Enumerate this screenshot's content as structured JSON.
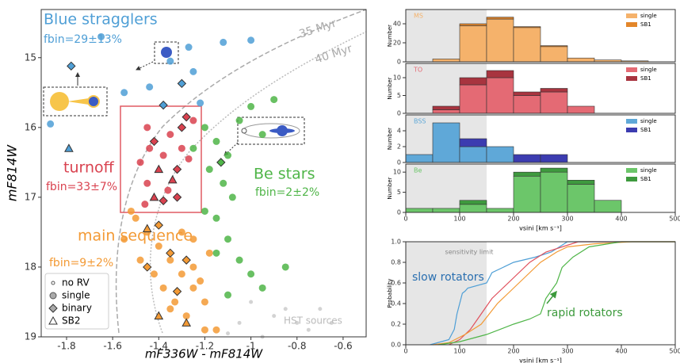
{
  "chart_data": [
    {
      "type": "scatter",
      "xlabel": "mF336W - mF814W",
      "ylabel": "mF814W",
      "xlim": [
        -1.91,
        -0.5
      ],
      "ylim": [
        19,
        14.31
      ],
      "xticks": [
        -1.8,
        -1.6,
        -1.4,
        -1.2,
        -1.0,
        -0.8,
        -0.6
      ],
      "yticks": [
        15,
        16,
        17,
        18,
        19
      ],
      "legend": [
        "no RV",
        "single",
        "binary",
        "SB2"
      ],
      "legend_loc": "lower left",
      "annotations": [
        "35 Myr",
        "40 Myr"
      ],
      "series": [
        {
          "name": "HST sources",
          "color": "#c8c8c8",
          "x": [
            -1.0,
            -0.9,
            -0.8,
            -0.7,
            -0.95,
            -0.75,
            -0.85,
            -1.05,
            -0.65,
            -1.1
          ],
          "values": [
            18.5,
            18.7,
            18.8,
            18.6,
            19.0,
            18.9,
            18.6,
            18.8,
            18.8,
            18.95
          ],
          "markers": [
            ".",
            ".",
            ".",
            ".",
            ".",
            ".",
            ".",
            ".",
            ".",
            "."
          ]
        },
        {
          "name": "main sequence",
          "fbin": "fbin=9±2%",
          "color": "#f39a35",
          "x": [
            -1.5,
            -1.45,
            -1.4,
            -1.35,
            -1.3,
            -1.25,
            -1.2,
            -1.48,
            -1.42,
            -1.38,
            -1.33,
            -1.28,
            -1.22,
            -1.18,
            -1.3,
            -1.25,
            -1.55,
            -1.52,
            -1.4,
            -1.35,
            -1.45,
            -1.28,
            -1.32,
            -1.4,
            -1.28,
            -1.15,
            -1.2,
            -1.45,
            -1.25,
            -1.35
          ],
          "values": [
            17.3,
            17.5,
            17.7,
            17.9,
            18.1,
            18.3,
            18.5,
            17.9,
            18.1,
            18.3,
            18.5,
            18.7,
            18.2,
            17.8,
            17.5,
            17.6,
            17.6,
            17.2,
            17.4,
            17.8,
            18.0,
            17.9,
            18.35,
            18.7,
            18.8,
            18.9,
            18.9,
            17.45,
            18.0,
            18.6
          ],
          "markers": [
            "o",
            "o",
            "o",
            "o",
            "o",
            "o",
            "o",
            "o",
            "o",
            "o",
            "o",
            "o",
            "o",
            "o",
            "o",
            "o",
            "o",
            "o",
            "d",
            "d",
            "d",
            "d",
            "d",
            "^",
            "^",
            "o",
            "o",
            "^",
            "o",
            "o"
          ]
        },
        {
          "name": "Be stars",
          "fbin": "fbin=2±2%",
          "color": "#4fb548",
          "x": [
            -1.2,
            -1.15,
            -1.1,
            -1.05,
            -1.0,
            -0.95,
            -1.18,
            -1.12,
            -1.08,
            -1.15,
            -1.1,
            -1.05,
            -1.0,
            -0.95,
            -0.85,
            -1.2,
            -1.15,
            -1.1,
            -0.9,
            -1.25,
            -1.13
          ],
          "values": [
            16.0,
            16.2,
            16.4,
            15.9,
            15.7,
            16.1,
            16.6,
            16.8,
            17.0,
            17.3,
            17.6,
            17.9,
            18.1,
            18.3,
            18.0,
            17.2,
            17.8,
            18.4,
            15.6,
            16.3,
            16.5
          ],
          "markers": [
            "o",
            "o",
            "o",
            "o",
            "o",
            "o",
            "o",
            "o",
            "o",
            "o",
            "o",
            "o",
            "o",
            "o",
            "o",
            "o",
            "o",
            "o",
            "o",
            "o",
            "d"
          ]
        },
        {
          "name": "turnoff",
          "fbin": "fbin=33±7%",
          "color": "#d9424f",
          "x": [
            -1.45,
            -1.42,
            -1.38,
            -1.35,
            -1.3,
            -1.28,
            -1.25,
            -1.4,
            -1.45,
            -1.42,
            -1.36,
            -1.32,
            -1.3,
            -1.48,
            -1.38,
            -1.44,
            -1.34,
            -1.27,
            -1.46,
            -1.32
          ],
          "values": [
            16.0,
            16.2,
            16.4,
            16.1,
            16.0,
            15.85,
            15.9,
            16.6,
            16.8,
            17.0,
            16.9,
            16.6,
            16.3,
            16.5,
            17.05,
            16.3,
            16.75,
            16.45,
            17.1,
            17.0
          ],
          "markers": [
            "o",
            "d",
            "o",
            "o",
            "d",
            "d",
            "o",
            "^",
            "o",
            "^",
            "o",
            "d",
            "o",
            "o",
            "d",
            "o",
            "^",
            "o",
            "o",
            "d"
          ]
        },
        {
          "name": "Blue stragglers",
          "fbin": "fbin=29±13%",
          "color": "#4f9fd6",
          "x": [
            -1.65,
            -1.55,
            -1.44,
            -1.35,
            -1.25,
            -1.27,
            -1.12,
            -1.0,
            -1.3,
            -1.38,
            -1.87,
            -1.78,
            -1.22,
            -1.79
          ],
          "values": [
            14.7,
            15.5,
            15.42,
            15.05,
            15.2,
            14.85,
            14.78,
            14.75,
            15.37,
            15.68,
            15.95,
            15.12,
            15.65,
            16.3
          ],
          "markers": [
            "o",
            "o",
            "o",
            "o",
            "o",
            "o",
            "o",
            "o",
            "d",
            "d",
            "o",
            "d",
            "o",
            "^"
          ]
        }
      ]
    },
    {
      "type": "histogram",
      "title": "MS",
      "ylabel": "Number",
      "xlim": [
        0,
        500
      ],
      "ylim": [
        0,
        55
      ],
      "yticks": [
        0,
        20,
        40
      ],
      "sensitivity_limit": 150,
      "bins": [
        0,
        50,
        100,
        150,
        200,
        250,
        300,
        350,
        400,
        450,
        500
      ],
      "series": [
        {
          "name": "single",
          "color": "#f5b26b",
          "values": [
            0,
            3,
            38,
            45,
            36,
            16,
            4,
            2,
            1,
            0
          ]
        },
        {
          "name": "SB1",
          "color": "#e3862a",
          "values": [
            0,
            0,
            2,
            2,
            1,
            1,
            0,
            0,
            0,
            0
          ]
        }
      ]
    },
    {
      "type": "histogram",
      "title": "TO",
      "ylabel": "Number",
      "xlim": [
        0,
        500
      ],
      "ylim": [
        0,
        14
      ],
      "yticks": [
        0,
        5,
        10
      ],
      "sensitivity_limit": 150,
      "bins": [
        0,
        50,
        100,
        150,
        200,
        250,
        300,
        350,
        400,
        450,
        500
      ],
      "series": [
        {
          "name": "single",
          "color": "#e46a74",
          "values": [
            0,
            1,
            8,
            10,
            5,
            6,
            2,
            0,
            0,
            0
          ]
        },
        {
          "name": "SB1",
          "color": "#a8343f",
          "values": [
            0,
            1,
            2,
            2,
            1,
            1,
            0,
            0,
            0,
            0
          ]
        }
      ]
    },
    {
      "type": "histogram",
      "title": "BSS",
      "ylabel": "Number",
      "xlim": [
        0,
        500
      ],
      "ylim": [
        0,
        6
      ],
      "yticks": [
        0,
        2,
        4
      ],
      "sensitivity_limit": 150,
      "bins": [
        0,
        50,
        100,
        150,
        200,
        250,
        300,
        350,
        400,
        450,
        500
      ],
      "series": [
        {
          "name": "single",
          "color": "#5fa8d8",
          "values": [
            1,
            5,
            2,
            2,
            0,
            0,
            0,
            0,
            0,
            0
          ]
        },
        {
          "name": "SB1",
          "color": "#3c3cb0",
          "values": [
            0,
            0,
            1,
            0,
            1,
            1,
            0,
            0,
            0,
            0
          ]
        }
      ]
    },
    {
      "type": "histogram",
      "title": "Be",
      "ylabel": "Number",
      "xlabel": "vsini [km s⁻¹]",
      "xlim": [
        0,
        500
      ],
      "ylim": [
        0,
        12
      ],
      "yticks": [
        0,
        5,
        10
      ],
      "xticks": [
        0,
        100,
        200,
        300,
        400,
        500
      ],
      "sensitivity_limit": 150,
      "bins": [
        0,
        50,
        100,
        150,
        200,
        250,
        300,
        350,
        400,
        450,
        500
      ],
      "series": [
        {
          "name": "single",
          "color": "#6cc66a",
          "values": [
            1,
            1,
            2,
            1,
            9,
            10,
            7,
            3,
            0,
            0
          ]
        },
        {
          "name": "SB1",
          "color": "#3e9a3e",
          "values": [
            0,
            0,
            1,
            0,
            1,
            1,
            1,
            0,
            0,
            0
          ]
        }
      ]
    },
    {
      "type": "cdf",
      "ylabel": "Probability",
      "xlabel": "vsini [km s⁻¹]",
      "xlim": [
        0,
        500
      ],
      "ylim": [
        0,
        1
      ],
      "xticks": [
        0,
        100,
        200,
        300,
        400,
        500
      ],
      "yticks": [
        {
          "value": 0,
          "label": "0.0"
        },
        0.2,
        0.4,
        0.6,
        0.8,
        {
          "value": 1,
          "label": "1.0"
        }
      ],
      "sensitivity_limit": 150,
      "annotations": [
        "sensitivity limit",
        "slow rotators",
        "rapid rotators"
      ],
      "series": [
        {
          "color": "#4f9fd6",
          "x": [
            45,
            80,
            90,
            95,
            100,
            105,
            110,
            115,
            150,
            160,
            200,
            240,
            270,
            300,
            500
          ],
          "values": [
            0,
            0.05,
            0.15,
            0.3,
            0.4,
            0.5,
            0.52,
            0.55,
            0.6,
            0.7,
            0.8,
            0.85,
            0.9,
            1.0,
            1.0
          ]
        },
        {
          "color": "#e0505c",
          "x": [
            80,
            100,
            120,
            140,
            160,
            180,
            200,
            230,
            260,
            320,
            500
          ],
          "values": [
            0,
            0.05,
            0.15,
            0.3,
            0.45,
            0.55,
            0.65,
            0.8,
            0.9,
            1.0,
            1.0
          ]
        },
        {
          "color": "#f39a35",
          "x": [
            50,
            80,
            110,
            140,
            170,
            190,
            220,
            250,
            280,
            300,
            350,
            420,
            500
          ],
          "values": [
            0,
            0.02,
            0.1,
            0.2,
            0.4,
            0.5,
            0.65,
            0.8,
            0.9,
            0.95,
            0.98,
            1.0,
            1.0
          ]
        },
        {
          "color": "#4fb548",
          "x": [
            60,
            100,
            150,
            200,
            230,
            250,
            260,
            280,
            290,
            310,
            340,
            400,
            500
          ],
          "values": [
            0,
            0.03,
            0.1,
            0.2,
            0.25,
            0.3,
            0.45,
            0.6,
            0.75,
            0.85,
            0.95,
            1.0,
            1.0
          ]
        }
      ]
    }
  ]
}
